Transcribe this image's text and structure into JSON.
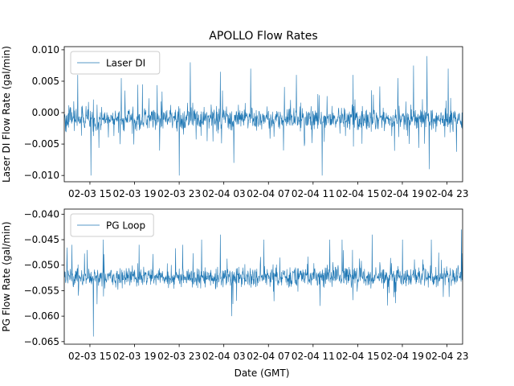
{
  "colors": {
    "line": "#1f77b4",
    "axes": "#000000",
    "legend_border": "#cccccc",
    "background": "#ffffff"
  },
  "chart_data": [
    {
      "type": "line",
      "title": "APOLLO Flow Rates",
      "xlabel": "",
      "ylabel": "Laser DI Flow Rate (gal/min)",
      "legend": "Laser DI",
      "legend_loc": "upper-left",
      "x_range_hours": [
        12.7,
        48.4
      ],
      "x_ticks_hours": [
        15,
        19,
        23,
        27,
        31,
        35,
        39,
        43,
        47
      ],
      "x_tick_labels": [
        "02-03 15",
        "02-03 19",
        "02-03 23",
        "02-04 03",
        "02-04 07",
        "02-04 11",
        "02-04 15",
        "02-04 19",
        "02-04 23"
      ],
      "ylim": [
        -0.011,
        0.0105
      ],
      "y_ticks": [
        0.01,
        0.005,
        0.0,
        -0.005,
        -0.01
      ],
      "y_tick_labels": [
        "0.010",
        "0.005",
        "0.000",
        "−0.005",
        "−0.010"
      ],
      "series": [
        {
          "name": "Laser DI",
          "baseline": -0.001,
          "noise": 0.0017,
          "points": 1300,
          "spikes": [
            {
              "hours": 13.9,
              "value": 0.006
            },
            {
              "hours": 15.1,
              "value": -0.01
            },
            {
              "hours": 17.8,
              "value": 0.0055
            },
            {
              "hours": 19.7,
              "value": 0.0045
            },
            {
              "hours": 23.0,
              "value": -0.01
            },
            {
              "hours": 24.0,
              "value": 0.008
            },
            {
              "hours": 26.7,
              "value": 0.0065
            },
            {
              "hours": 27.9,
              "value": -0.008
            },
            {
              "hours": 29.4,
              "value": 0.007
            },
            {
              "hours": 33.5,
              "value": 0.006
            },
            {
              "hours": 35.8,
              "value": -0.01
            },
            {
              "hours": 38.6,
              "value": 0.006
            },
            {
              "hours": 42.6,
              "value": 0.0055
            },
            {
              "hours": 44.0,
              "value": 0.0075
            },
            {
              "hours": 45.2,
              "value": 0.009
            },
            {
              "hours": 45.4,
              "value": -0.009
            },
            {
              "hours": 47.1,
              "value": 0.007
            }
          ]
        }
      ]
    },
    {
      "type": "line",
      "title": "",
      "xlabel": "Date (GMT)",
      "ylabel": "PG Flow Rate (gal/min)",
      "legend": "PG Loop",
      "legend_loc": "upper-left",
      "x_range_hours": [
        12.7,
        48.4
      ],
      "x_ticks_hours": [
        15,
        19,
        23,
        27,
        31,
        35,
        39,
        43,
        47
      ],
      "x_tick_labels": [
        "02-03 15",
        "02-03 19",
        "02-03 23",
        "02-04 03",
        "02-04 07",
        "02-04 11",
        "02-04 15",
        "02-04 19",
        "02-04 23"
      ],
      "ylim": [
        -0.0655,
        -0.039
      ],
      "y_ticks": [
        -0.04,
        -0.045,
        -0.05,
        -0.055,
        -0.06,
        -0.065
      ],
      "y_tick_labels": [
        "−0.040",
        "−0.045",
        "−0.050",
        "−0.055",
        "−0.060",
        "−0.065"
      ],
      "series": [
        {
          "name": "PG Loop",
          "baseline": -0.0523,
          "noise": 0.0018,
          "points": 1300,
          "spikes": [
            {
              "hours": 13.4,
              "value": -0.046
            },
            {
              "hours": 15.3,
              "value": -0.064
            },
            {
              "hours": 16.2,
              "value": -0.045
            },
            {
              "hours": 19.4,
              "value": -0.046
            },
            {
              "hours": 23.3,
              "value": -0.046
            },
            {
              "hours": 25.0,
              "value": -0.045
            },
            {
              "hours": 26.7,
              "value": -0.044
            },
            {
              "hours": 27.7,
              "value": -0.06
            },
            {
              "hours": 30.6,
              "value": -0.045
            },
            {
              "hours": 36.5,
              "value": -0.045
            },
            {
              "hours": 37.6,
              "value": -0.045
            },
            {
              "hours": 40.3,
              "value": -0.044
            },
            {
              "hours": 43.0,
              "value": -0.045
            },
            {
              "hours": 45.6,
              "value": -0.045
            },
            {
              "hours": 48.3,
              "value": -0.043
            }
          ]
        }
      ]
    }
  ]
}
